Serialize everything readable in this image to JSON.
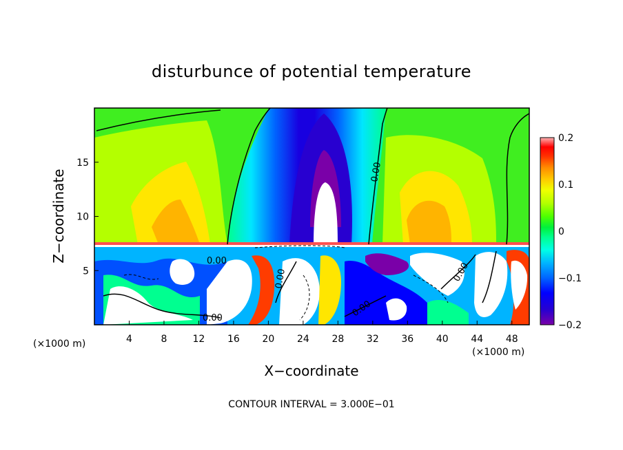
{
  "chart_data": {
    "type": "heatmap",
    "title": "disturbunce of potential temperature",
    "xlabel": "X−coordinate",
    "ylabel": "Z−coordinate",
    "x_unit": "(×1000 m)",
    "x_unit_right": "(×1000 m)",
    "xlim": [
      0,
      50
    ],
    "ylim": [
      0,
      20
    ],
    "x_ticks": [
      4,
      8,
      12,
      16,
      20,
      24,
      28,
      32,
      36,
      40,
      44,
      48
    ],
    "x_tick_labels": [
      "4",
      "8",
      "12",
      "16",
      "20",
      "24",
      "28",
      "32",
      "36",
      "40",
      "44",
      "48"
    ],
    "y_ticks": [
      5,
      10,
      15
    ],
    "y_tick_labels": [
      "5",
      "10",
      "15"
    ],
    "colorbar": {
      "range": [
        -0.2,
        0.2
      ],
      "ticks": [
        0.2,
        0.1,
        0,
        -0.1,
        -0.2
      ],
      "tick_labels": [
        "0.2",
        "0.1",
        "0",
        "−0.1",
        "−0.2"
      ],
      "colors": [
        "#7a00a8",
        "#3a00c8",
        "#0000ff",
        "#0050ff",
        "#0096ff",
        "#00d2ff",
        "#00ffe0",
        "#00ff90",
        "#00f040",
        "#40ff00",
        "#a8ff00",
        "#e0ff00",
        "#ffe600",
        "#ffb400",
        "#ff8200",
        "#ff3c00",
        "#ff0000",
        "#ff6464",
        "#ffb4b4"
      ]
    },
    "contour_labels": [
      "0.00",
      "0.00",
      "0.00",
      "0.00",
      "0.00",
      "0.00"
    ],
    "contour_interval_text": "CONTOUR INTERVAL = 3.000E−01",
    "grid": false
  }
}
